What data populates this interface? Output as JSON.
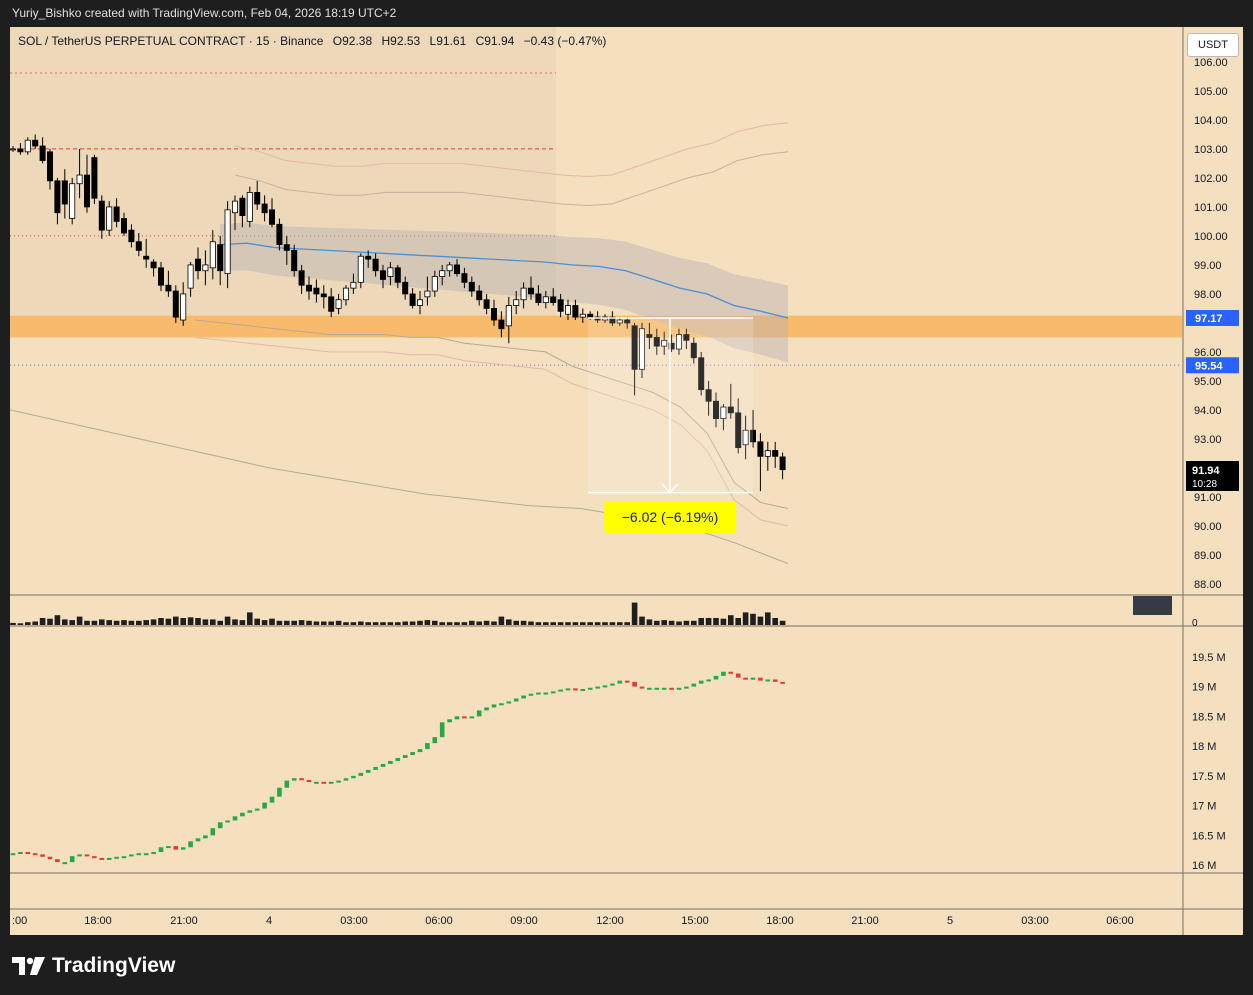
{
  "header": {
    "attribution": "Yuriy_Bishko created with TradingView.com, Feb 04, 2026 18:19 UTC+2"
  },
  "legend": {
    "symbol": "SOL / TetherUS PERPETUAL CONTRACT · 15 · Binance",
    "open": "O92.38",
    "high": "H92.53",
    "low": "L91.61",
    "close": "C91.94",
    "change": "−0.43 (−0.47%)"
  },
  "currency_button": "USDT",
  "price_axis": {
    "ticks": [
      "106.00",
      "105.00",
      "104.00",
      "103.00",
      "102.00",
      "101.00",
      "100.00",
      "99.00",
      "98.00",
      "96.00",
      "95.00",
      "94.00",
      "93.00",
      "91.00",
      "90.00",
      "89.00",
      "88.00"
    ],
    "labels": {
      "level_a": "97.17",
      "level_b": "95.54",
      "last_price": "91.94",
      "countdown": "10:28"
    }
  },
  "volume_axis": {
    "zero": "0"
  },
  "indicator_axis": {
    "ticks": [
      "19.5 M",
      "19 M",
      "18.5 M",
      "18 M",
      "17.5 M",
      "17 M",
      "16.5 M",
      "16 M"
    ]
  },
  "time_axis": {
    "ticks": [
      ":00",
      "18:00",
      "21:00",
      "4",
      "03:00",
      "06:00",
      "09:00",
      "12:00",
      "15:00",
      "18:00",
      "21:00",
      "5",
      "03:00",
      "06:00"
    ]
  },
  "measure_label": "−6.02 (−6.19%)",
  "brand": "TradingView",
  "colors": {
    "background": "#f4dfbf",
    "zone": "#f8b55c",
    "candle_up": "#ffffff",
    "candle_down": "#000000",
    "cvd_up": "#27a844",
    "cvd_down": "#e53935",
    "vwap": "#4a8fd8",
    "level_line": "#e53935",
    "badge_blue": "#2962ff"
  },
  "chart_data": [
    {
      "type": "candlestick",
      "title": "SOL / TetherUS PERPETUAL CONTRACT · 15 · Binance",
      "interval": "15",
      "ylim": [
        87.5,
        106.3
      ],
      "candles": [
        [
          103.0,
          103.1,
          102.9,
          103.0
        ],
        [
          103.0,
          103.2,
          102.8,
          102.9
        ],
        [
          102.9,
          103.4,
          102.8,
          103.3
        ],
        [
          103.3,
          103.5,
          103.0,
          103.1
        ],
        [
          103.1,
          103.4,
          102.5,
          102.6
        ],
        [
          102.9,
          103.0,
          101.6,
          101.9
        ],
        [
          101.9,
          102.0,
          100.4,
          100.8
        ],
        [
          101.9,
          102.3,
          100.6,
          101.1
        ],
        [
          100.6,
          102.0,
          100.4,
          101.8
        ],
        [
          101.8,
          103.0,
          101.3,
          102.1
        ],
        [
          102.1,
          102.8,
          100.8,
          101.0
        ],
        [
          102.7,
          102.8,
          101.1,
          101.3
        ],
        [
          101.2,
          101.4,
          99.9,
          100.2
        ],
        [
          100.2,
          101.2,
          100.0,
          101.0
        ],
        [
          101.0,
          101.3,
          100.3,
          100.5
        ],
        [
          100.6,
          100.8,
          100.0,
          100.1
        ],
        [
          100.2,
          100.4,
          99.6,
          99.8
        ],
        [
          99.8,
          100.1,
          99.3,
          99.5
        ],
        [
          99.3,
          99.9,
          98.9,
          99.2
        ],
        [
          99.1,
          99.2,
          98.6,
          98.9
        ],
        [
          98.9,
          99.1,
          98.1,
          98.3
        ],
        [
          98.3,
          98.8,
          97.9,
          98.1
        ],
        [
          98.1,
          98.3,
          97.0,
          97.2
        ],
        [
          97.1,
          98.4,
          96.9,
          98.0
        ],
        [
          98.2,
          99.1,
          97.9,
          99.0
        ],
        [
          99.2,
          99.6,
          98.5,
          98.8
        ],
        [
          98.8,
          99.5,
          98.3,
          99.0
        ],
        [
          98.9,
          100.2,
          98.5,
          99.8
        ],
        [
          99.7,
          100.0,
          98.3,
          98.8
        ],
        [
          98.7,
          101.2,
          98.2,
          100.9
        ],
        [
          100.8,
          101.4,
          100.2,
          101.2
        ],
        [
          101.3,
          101.4,
          100.3,
          100.7
        ],
        [
          100.5,
          101.7,
          100.3,
          101.5
        ],
        [
          101.5,
          101.9,
          100.9,
          101.1
        ],
        [
          101.1,
          101.4,
          100.5,
          100.8
        ],
        [
          100.9,
          101.3,
          100.3,
          100.4
        ],
        [
          100.4,
          100.6,
          99.5,
          99.7
        ],
        [
          99.7,
          100.0,
          99.0,
          99.5
        ],
        [
          99.5,
          99.7,
          98.6,
          98.8
        ],
        [
          98.8,
          99.0,
          98.0,
          98.3
        ],
        [
          98.3,
          98.6,
          97.8,
          98.1
        ],
        [
          98.2,
          98.5,
          97.7,
          98.0
        ],
        [
          98.0,
          98.3,
          97.5,
          97.9
        ],
        [
          97.9,
          98.2,
          97.2,
          97.4
        ],
        [
          97.5,
          98.0,
          97.3,
          97.8
        ],
        [
          97.8,
          98.3,
          97.6,
          98.2
        ],
        [
          98.2,
          98.7,
          98.0,
          98.4
        ],
        [
          98.4,
          99.4,
          98.2,
          99.3
        ],
        [
          99.3,
          99.5,
          98.9,
          99.2
        ],
        [
          99.2,
          99.4,
          98.6,
          98.8
        ],
        [
          98.8,
          99.0,
          98.2,
          98.5
        ],
        [
          98.6,
          99.1,
          98.3,
          98.9
        ],
        [
          98.9,
          99.0,
          98.2,
          98.4
        ],
        [
          98.4,
          98.6,
          97.8,
          98.0
        ],
        [
          98.0,
          98.2,
          97.5,
          97.6
        ],
        [
          97.6,
          98.1,
          97.3,
          97.8
        ],
        [
          97.9,
          98.6,
          97.6,
          98.1
        ],
        [
          98.1,
          98.8,
          97.9,
          98.6
        ],
        [
          98.6,
          99.0,
          98.3,
          98.8
        ],
        [
          98.8,
          99.1,
          98.6,
          99.0
        ],
        [
          99.0,
          99.2,
          98.6,
          98.7
        ],
        [
          98.7,
          98.9,
          98.2,
          98.4
        ],
        [
          98.4,
          98.6,
          97.9,
          98.1
        ],
        [
          98.1,
          98.3,
          97.6,
          97.8
        ],
        [
          97.8,
          98.0,
          97.3,
          97.5
        ],
        [
          97.5,
          97.8,
          96.9,
          97.1
        ],
        [
          97.1,
          97.4,
          96.5,
          96.8
        ],
        [
          96.9,
          97.9,
          96.3,
          97.6
        ],
        [
          97.6,
          98.1,
          97.3,
          97.8
        ],
        [
          97.8,
          98.4,
          97.5,
          98.2
        ],
        [
          98.2,
          98.6,
          97.8,
          98.0
        ],
        [
          98.0,
          98.3,
          97.6,
          97.7
        ],
        [
          97.7,
          98.1,
          97.5,
          97.9
        ],
        [
          97.9,
          98.2,
          97.6,
          97.7
        ],
        [
          97.8,
          98.0,
          97.2,
          97.4
        ],
        [
          97.3,
          97.8,
          97.1,
          97.6
        ],
        [
          97.6,
          97.8,
          97.1,
          97.2
        ],
        [
          97.2,
          97.5,
          97.0,
          97.3
        ],
        [
          97.3,
          97.4,
          97.1,
          97.2
        ],
        [
          97.2,
          97.4,
          97.0,
          97.1
        ],
        [
          97.1,
          97.3,
          97.0,
          97.2
        ],
        [
          97.2,
          97.4,
          96.9,
          97.0
        ],
        [
          97.0,
          97.2,
          96.9,
          97.1
        ],
        [
          97.1,
          97.2,
          96.8,
          97.0
        ],
        [
          96.9,
          97.0,
          94.5,
          95.4
        ],
        [
          95.4,
          97.0,
          95.1,
          96.8
        ],
        [
          96.6,
          97.0,
          96.1,
          96.5
        ],
        [
          96.5,
          96.8,
          95.9,
          96.2
        ],
        [
          96.2,
          96.7,
          95.9,
          96.4
        ],
        [
          96.3,
          96.6,
          96.0,
          96.1
        ],
        [
          96.1,
          96.8,
          95.9,
          96.6
        ],
        [
          96.6,
          96.8,
          96.1,
          96.4
        ],
        [
          96.3,
          96.5,
          95.6,
          95.8
        ],
        [
          95.8,
          96.0,
          94.5,
          94.7
        ],
        [
          94.7,
          95.0,
          93.8,
          94.3
        ],
        [
          94.3,
          94.6,
          93.4,
          93.7
        ],
        [
          93.7,
          94.2,
          93.3,
          94.1
        ],
        [
          94.1,
          94.9,
          93.7,
          93.9
        ],
        [
          93.9,
          94.4,
          92.5,
          92.7
        ],
        [
          92.8,
          93.8,
          92.3,
          93.3
        ],
        [
          93.3,
          94.0,
          92.7,
          92.9
        ],
        [
          92.9,
          93.2,
          91.2,
          92.4
        ],
        [
          92.4,
          92.9,
          91.9,
          92.6
        ],
        [
          92.6,
          92.9,
          92.0,
          92.4
        ],
        [
          92.38,
          92.53,
          91.61,
          91.94
        ]
      ],
      "volume_relative": [
        0.15,
        0.12,
        0.2,
        0.25,
        0.5,
        0.45,
        0.7,
        0.4,
        0.35,
        0.6,
        0.3,
        0.3,
        0.4,
        0.35,
        0.3,
        0.35,
        0.3,
        0.3,
        0.35,
        0.4,
        0.5,
        0.45,
        0.6,
        0.5,
        0.55,
        0.5,
        0.4,
        0.4,
        0.3,
        0.6,
        0.4,
        0.35,
        0.9,
        0.45,
        0.35,
        0.45,
        0.3,
        0.3,
        0.3,
        0.35,
        0.3,
        0.25,
        0.25,
        0.25,
        0.3,
        0.2,
        0.2,
        0.25,
        0.2,
        0.2,
        0.2,
        0.2,
        0.2,
        0.25,
        0.25,
        0.3,
        0.35,
        0.3,
        0.2,
        0.2,
        0.2,
        0.2,
        0.3,
        0.25,
        0.3,
        0.25,
        0.6,
        0.4,
        0.3,
        0.3,
        0.25,
        0.2,
        0.2,
        0.2,
        0.2,
        0.2,
        0.2,
        0.2,
        0.2,
        0.2,
        0.2,
        0.2,
        0.2,
        0.2,
        1.6,
        0.6,
        0.4,
        0.3,
        0.35,
        0.3,
        0.25,
        0.3,
        0.3,
        0.5,
        0.5,
        0.5,
        0.45,
        0.7,
        0.5,
        0.9,
        0.8,
        0.6,
        0.9,
        0.5,
        0.3
      ],
      "vwap": [
        99.7,
        99.75,
        99.6,
        99.55,
        99.5,
        99.45,
        99.4,
        99.35,
        99.3,
        99.25,
        99.2,
        99.15,
        99.1,
        99.0,
        98.95,
        98.8,
        98.5,
        98.2,
        98.0,
        97.6,
        97.4,
        97.17
      ],
      "band_upper": [
        102.1,
        101.9,
        101.6,
        101.5,
        101.4,
        101.4,
        101.5,
        101.5,
        101.5,
        101.5,
        101.4,
        101.3,
        101.2,
        101.1,
        101.05,
        101.1,
        101.4,
        101.7,
        102.0,
        102.2,
        102.6,
        102.8,
        102.9
      ],
      "band_lower": [
        97.1,
        97.0,
        96.9,
        96.8,
        96.7,
        96.6,
        96.6,
        96.6,
        96.5,
        96.5,
        96.3,
        96.2,
        96.1,
        96.0,
        95.5,
        95.2,
        94.9,
        94.6,
        94.1,
        93.2,
        91.5,
        90.8,
        90.6
      ],
      "outer_band": [
        94.0,
        93.6,
        93.2,
        92.8,
        92.4,
        92.0,
        91.7,
        91.4,
        91.1,
        90.9,
        90.7,
        90.6,
        90.3,
        90.0,
        89.4,
        88.7
      ],
      "levels": [
        {
          "price": 103.0,
          "style": "dashed"
        },
        {
          "price": 100.0,
          "style": "dotted"
        },
        {
          "price": 95.54,
          "style": "dotted"
        }
      ],
      "zone": [
        96.5,
        97.25
      ],
      "measure": {
        "from": 97.17,
        "to": 91.15,
        "change": -6.02,
        "percent": -6.19
      }
    },
    {
      "type": "bar",
      "title": "",
      "ylim": [
        15.6,
        19.6
      ],
      "unit": "M",
      "cvd": [
        16.2,
        16.22,
        16.2,
        16.18,
        16.14,
        16.1,
        16.05,
        16.05,
        16.15,
        16.18,
        16.15,
        16.12,
        16.1,
        16.12,
        16.14,
        16.15,
        16.18,
        16.2,
        16.2,
        16.22,
        16.3,
        16.32,
        16.26,
        16.3,
        16.4,
        16.45,
        16.5,
        16.62,
        16.72,
        16.75,
        16.82,
        16.88,
        16.92,
        16.95,
        17.05,
        17.15,
        17.3,
        17.42,
        17.46,
        17.43,
        17.4,
        17.4,
        17.38,
        17.4,
        17.42,
        17.46,
        17.5,
        17.55,
        17.6,
        17.65,
        17.7,
        17.75,
        17.8,
        17.85,
        17.9,
        17.95,
        18.05,
        18.15,
        18.4,
        18.45,
        18.5,
        18.48,
        18.5,
        18.6,
        18.65,
        18.7,
        18.72,
        18.75,
        18.8,
        18.85,
        18.88,
        18.9,
        18.9,
        18.92,
        18.95,
        18.97,
        18.95,
        18.96,
        18.98,
        19.0,
        19.02,
        19.05,
        19.1,
        19.08,
        19.0,
        18.97,
        18.98,
        18.98,
        18.98,
        18.97,
        18.98,
        19.0,
        19.05,
        19.1,
        19.12,
        19.18,
        19.25,
        19.22,
        19.15,
        19.12,
        19.15,
        19.1,
        19.12,
        19.08,
        19.06
      ]
    }
  ]
}
